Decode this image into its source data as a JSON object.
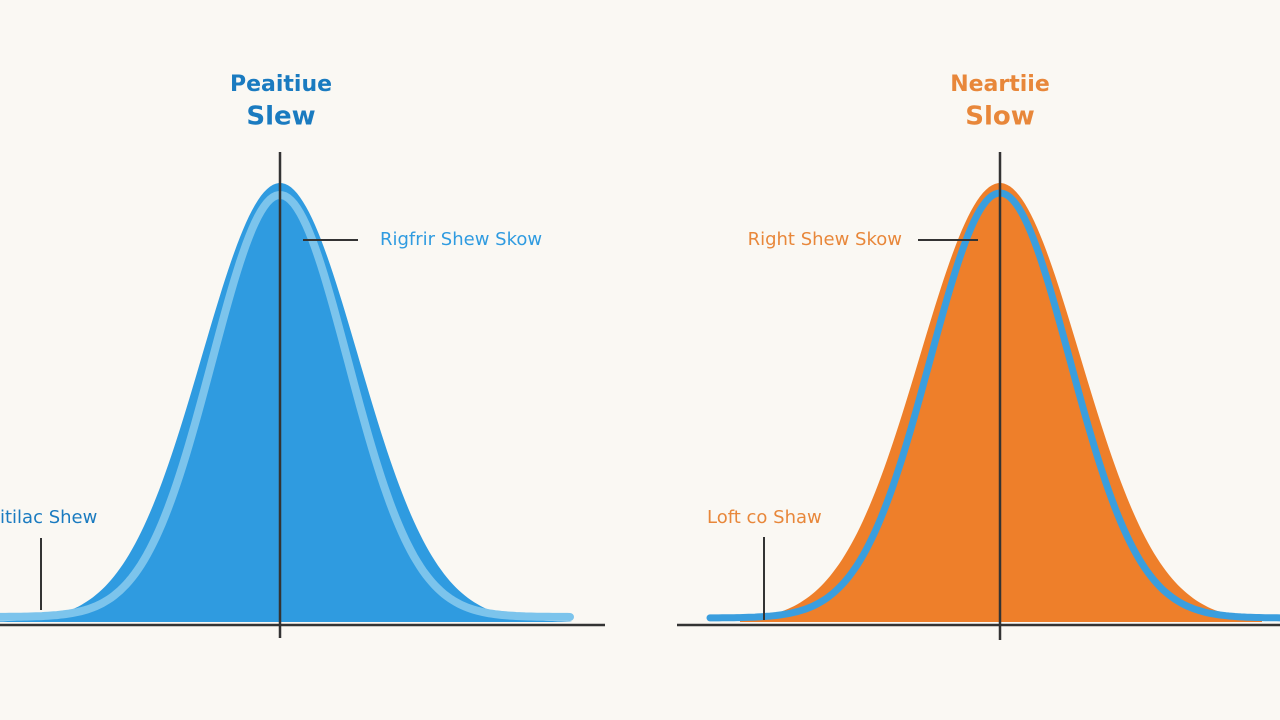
{
  "panels": [
    {
      "title": [
        "Peaitiue",
        "Slew"
      ],
      "annotations": [
        "Rigfrir Shew Skow",
        "itilac Shew"
      ]
    },
    {
      "title": [
        "Neartiie",
        "Slow"
      ],
      "annotations": [
        "Right Shew Skow",
        "Loft co Shaw"
      ]
    }
  ]
}
